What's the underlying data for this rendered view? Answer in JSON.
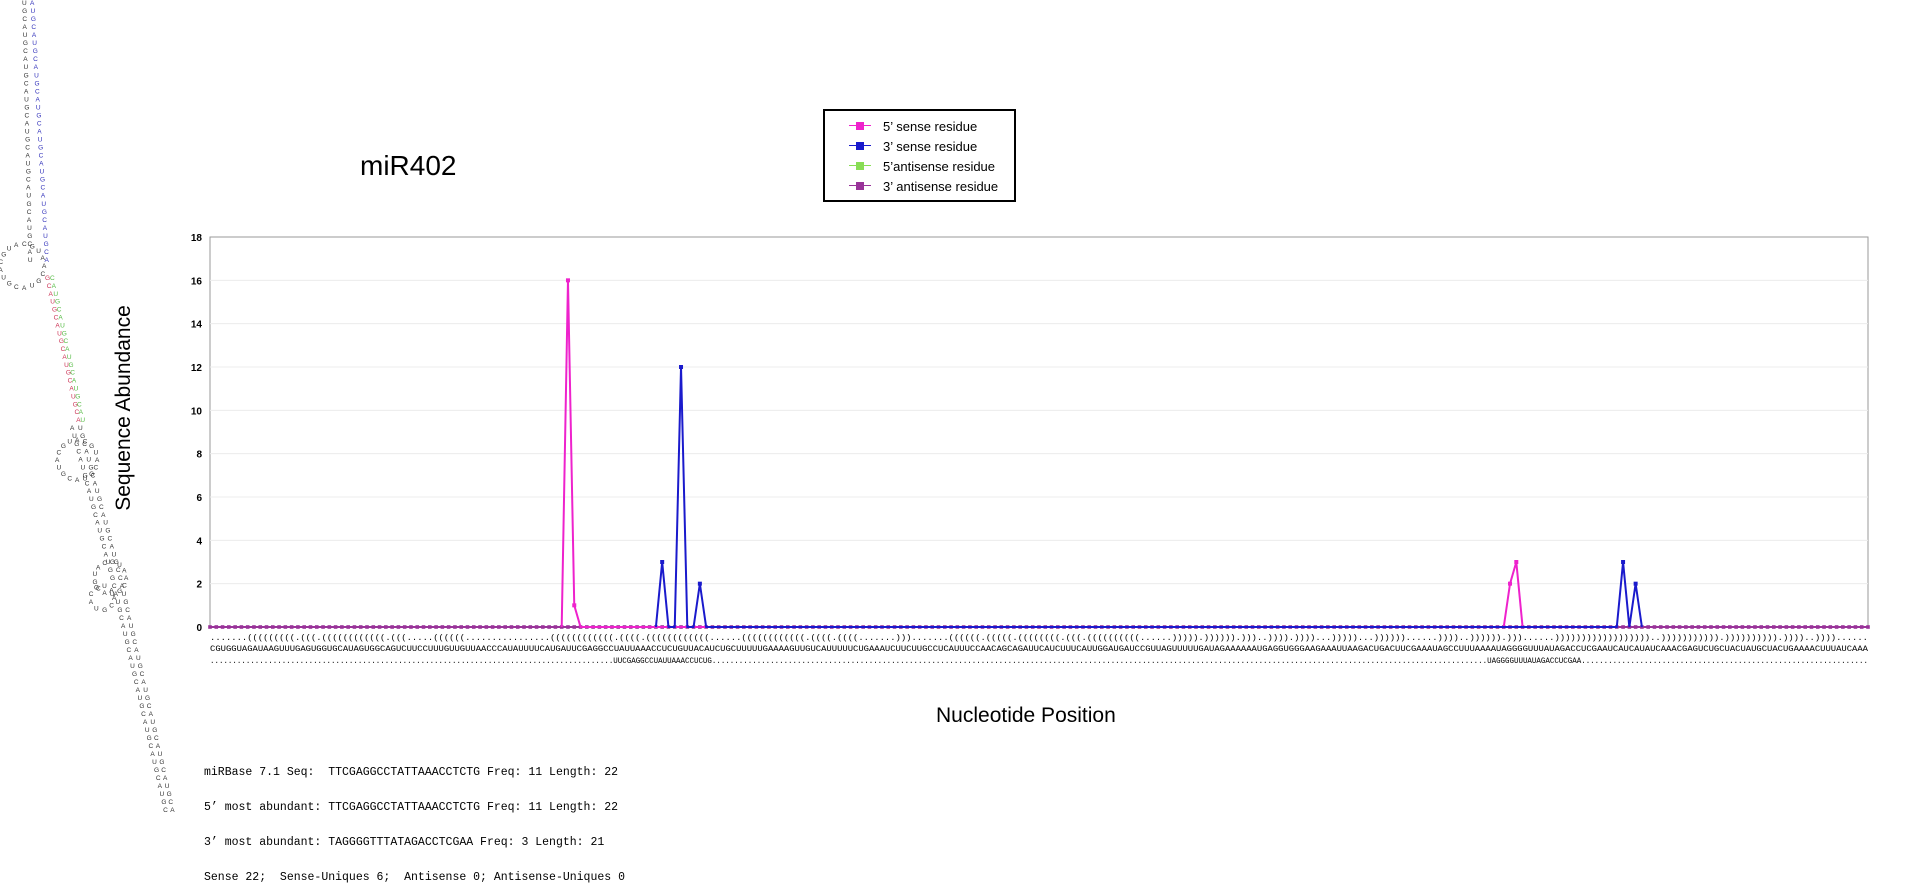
{
  "title": "miR402",
  "legend": [
    {
      "label": "5’ sense residue",
      "color": "#ee22cc"
    },
    {
      "label": "3’ sense residue",
      "color": "#1a1acc"
    },
    {
      "label": "5’antisense residue",
      "color": "#88dd55"
    },
    {
      "label": "3’ antisense residue",
      "color": "#993399"
    }
  ],
  "axes": {
    "ylabel": "Sequence Abundance",
    "xlabel": "Nucleotide Position"
  },
  "chart_data": {
    "type": "line",
    "ylabel": "Sequence Abundance",
    "xlabel": "Nucleotide Position",
    "ylim": [
      0,
      18
    ],
    "yticks": [
      0,
      2,
      4,
      6,
      8,
      10,
      12,
      14,
      16,
      18
    ],
    "grid": true,
    "legend_position": "top",
    "n_positions": 265,
    "series": [
      {
        "name": "5’ sense residue",
        "color": "#ee22cc",
        "points": [
          [
            56,
            0
          ],
          [
            57,
            16
          ],
          [
            58,
            1
          ],
          [
            59,
            0
          ],
          [
            206,
            0
          ],
          [
            207,
            2
          ],
          [
            208,
            3
          ],
          [
            209,
            0
          ]
        ]
      },
      {
        "name": "3’ sense residue",
        "color": "#1a1acc",
        "points": [
          [
            71,
            0
          ],
          [
            72,
            3
          ],
          [
            73,
            0
          ],
          [
            74,
            0
          ],
          [
            75,
            12
          ],
          [
            76,
            0
          ],
          [
            77,
            0
          ],
          [
            78,
            2
          ],
          [
            79,
            0
          ],
          [
            224,
            0
          ],
          [
            225,
            3
          ],
          [
            226,
            0
          ],
          [
            227,
            2
          ],
          [
            228,
            0
          ]
        ]
      },
      {
        "name": "5’antisense residue",
        "color": "#88dd55",
        "points": []
      },
      {
        "name": "3’ antisense residue",
        "color": "#993399",
        "points": []
      }
    ]
  },
  "sequence": {
    "structure": ".......(((((((((.(((.((((((((((((.(((.....((((((................((((((((((((.((((.((((((((((((......((((((((((((.((((.((((.......))).......((((((.(((((.((((((((.(((.((((((((((......))))).)))))).)))..)))).))))...)))))...))))))......))))..)))))).)))......))))))))))))))))))..))))))))))).)))))))))).))))..))))......",
    "nucleotides": "CGUGGUAGAUAAGUUUGAGUGGUGCAUAGUGGCAGUCUUCCUUUGUUGUUAACCCAUAUUUUCAUGAUUCGAGGCCUAUUAAACCUCUGUUACAUCUGCUUUUUGAAAAGUUGUCAUUUUUCUGAAAUCUUCUUGCCUCAUUUCCAACAGCAGAUUCAUCUUUCAUUGGAUGAUCCGUUAGUUUUUGAUAGAAAAAAUGAGGUGGGAAGAAAUUAAGACUGACUUCGAAAUAGCCUUUAAAAUAGGGGUUUAUAGACCUCGAAUCAUCAUAUCAAACGAGUCUGCUACUAUGCUACUGAAAACUUUAUCAAA",
    "mature": "..........................................................................................UUCGAGGCCUAUUAAACCUCUG.............................................................................................................................................................................UAGGGGUUUAUAGACCUCGAA................................................................"
  },
  "stats": [
    "miRBase 7.1 Seq:  TTCGAGGCCTATTAAACCTCTG Freq: 11 Length: 22",
    "5’ most abundant: TTCGAGGCCTATTAAACCTCTG Freq: 11 Length: 22",
    "3’ most abundant: TAGGGGTTTATAGACCTCGAA Freq: 3 Length: 21",
    "Sense 22;  Sense-Uniques 6;  Antisense 0; Antisense-Uniques 0"
  ],
  "hairpin_color": "#222222"
}
